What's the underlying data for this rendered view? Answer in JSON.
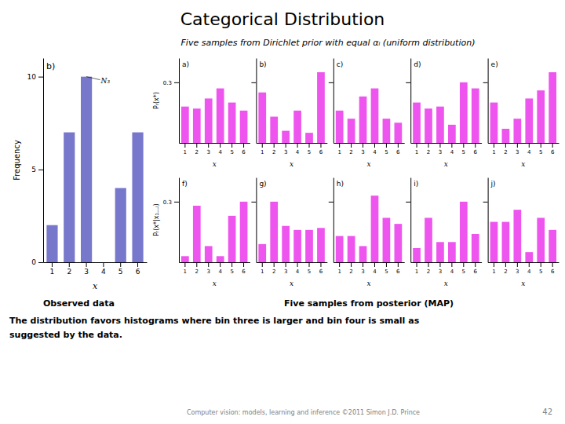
{
  "title": "Categorical Distribution",
  "subtitle": "Five samples from Dirichlet prior with equal αᵢ (uniform distribution)",
  "annotations": [
    "Five samples from posterior (MAP)",
    "The distribution favors histograms where bin three is larger and bin four is small as",
    "suggested by the data.",
    "Computer vision: models, learning and inference   ©2011 Simon J.D. Prince",
    "42"
  ],
  "chart_data": [
    {
      "type": "bar",
      "subtitle": "Observed data",
      "categories": [
        "1",
        "2",
        "3",
        "4",
        "5",
        "6"
      ],
      "values": [
        2,
        7,
        10,
        0,
        4,
        7
      ],
      "color": "#7777cc",
      "ylim": [
        0,
        11
      ],
      "yticks": [
        0,
        5,
        10
      ],
      "xlabel": "x",
      "ylabel": "Frequency",
      "annotations": [
        {
          "text": "b)"
        },
        {
          "text": "N₃",
          "x": "3"
        }
      ]
    },
    {
      "type": "bar",
      "categories": [
        "1",
        "2",
        "3",
        "4",
        "5",
        "6"
      ],
      "values": [
        0.18,
        0.17,
        0.22,
        0.27,
        0.2,
        0.16
      ],
      "color": "#ee55ee",
      "ylim": [
        0,
        0.42
      ],
      "yticks": [
        0.3
      ],
      "xlabel": "x",
      "ylabel": "Pᵣ(x*)",
      "annotations": [
        {
          "text": "a)"
        }
      ]
    },
    {
      "type": "bar",
      "categories": [
        "1",
        "2",
        "3",
        "4",
        "5",
        "6"
      ],
      "values": [
        0.25,
        0.13,
        0.06,
        0.16,
        0.05,
        0.35
      ],
      "color": "#ee55ee",
      "ylim": [
        0,
        0.42
      ],
      "yticks": [
        0.3
      ],
      "xlabel": "x",
      "tick_labels": "x",
      "annotations": [
        {
          "text": "b)"
        }
      ]
    },
    {
      "type": "bar",
      "categories": [
        "1",
        "2",
        "3",
        "4",
        "5",
        "6"
      ],
      "values": [
        0.16,
        0.12,
        0.23,
        0.27,
        0.12,
        0.1
      ],
      "color": "#ee55ee",
      "ylim": [
        0,
        0.42
      ],
      "yticks": [
        0.3
      ],
      "xlabel": "x",
      "tick_labels": "x",
      "annotations": [
        {
          "text": "c)"
        }
      ]
    },
    {
      "type": "bar",
      "categories": [
        "1",
        "2",
        "3",
        "4",
        "5",
        "6"
      ],
      "values": [
        0.2,
        0.17,
        0.18,
        0.09,
        0.3,
        0.27
      ],
      "color": "#ee55ee",
      "ylim": [
        0,
        0.42
      ],
      "yticks": [
        0.3
      ],
      "xlabel": "x",
      "tick_labels": "x",
      "annotations": [
        {
          "text": "d)"
        }
      ]
    },
    {
      "type": "bar",
      "categories": [
        "1",
        "2",
        "3",
        "4",
        "5",
        "6"
      ],
      "values": [
        0.2,
        0.07,
        0.12,
        0.22,
        0.26,
        0.35
      ],
      "color": "#ee55ee",
      "ylim": [
        0,
        0.42
      ],
      "yticks": [
        0.3
      ],
      "xlabel": "x",
      "tick_labels": "x",
      "annotations": [
        {
          "text": "e)"
        }
      ]
    },
    {
      "type": "bar",
      "categories": [
        "1",
        "2",
        "3",
        "4",
        "5",
        "6"
      ],
      "values": [
        0.03,
        0.28,
        0.08,
        0.03,
        0.23,
        0.3
      ],
      "color": "#ee55ee",
      "ylim": [
        0,
        0.42
      ],
      "yticks": [
        0.3
      ],
      "xlabel": "x",
      "ylabel": "Pᵣ(x*|x₁...ₗ)",
      "annotations": [
        {
          "text": "f)"
        }
      ]
    },
    {
      "type": "bar",
      "categories": [
        "1",
        "2",
        "3",
        "4",
        "5",
        "6"
      ],
      "values": [
        0.09,
        0.3,
        0.18,
        0.16,
        0.16,
        0.17
      ],
      "color": "#ee55ee",
      "ylim": [
        0,
        0.42
      ],
      "yticks": [
        0.3
      ],
      "xlabel": "x",
      "tick_labels": "x",
      "annotations": [
        {
          "text": "g)"
        }
      ]
    },
    {
      "type": "bar",
      "categories": [
        "1",
        "2",
        "3",
        "4",
        "5",
        "6"
      ],
      "values": [
        0.13,
        0.13,
        0.08,
        0.33,
        0.22,
        0.19
      ],
      "color": "#ee55ee",
      "ylim": [
        0,
        0.42
      ],
      "yticks": [
        0.3
      ],
      "xlabel": "x",
      "tick_labels": "x",
      "annotations": [
        {
          "text": "h)"
        }
      ]
    },
    {
      "type": "bar",
      "categories": [
        "1",
        "2",
        "3",
        "4",
        "5",
        "6"
      ],
      "values": [
        0.07,
        0.22,
        0.1,
        0.1,
        0.3,
        0.14
      ],
      "color": "#ee55ee",
      "ylim": [
        0,
        0.42
      ],
      "yticks": [
        0.3
      ],
      "xlabel": "x",
      "tick_labels": "x",
      "annotations": [
        {
          "text": "i)"
        }
      ]
    },
    {
      "type": "bar",
      "categories": [
        "1",
        "2",
        "3",
        "4",
        "5",
        "6"
      ],
      "values": [
        0.2,
        0.2,
        0.26,
        0.05,
        0.22,
        0.16
      ],
      "color": "#ee55ee",
      "ylim": [
        0,
        0.42
      ],
      "yticks": [
        0.3
      ],
      "xlabel": "x",
      "tick_labels": "x",
      "annotations": [
        {
          "text": "j)"
        }
      ]
    }
  ]
}
